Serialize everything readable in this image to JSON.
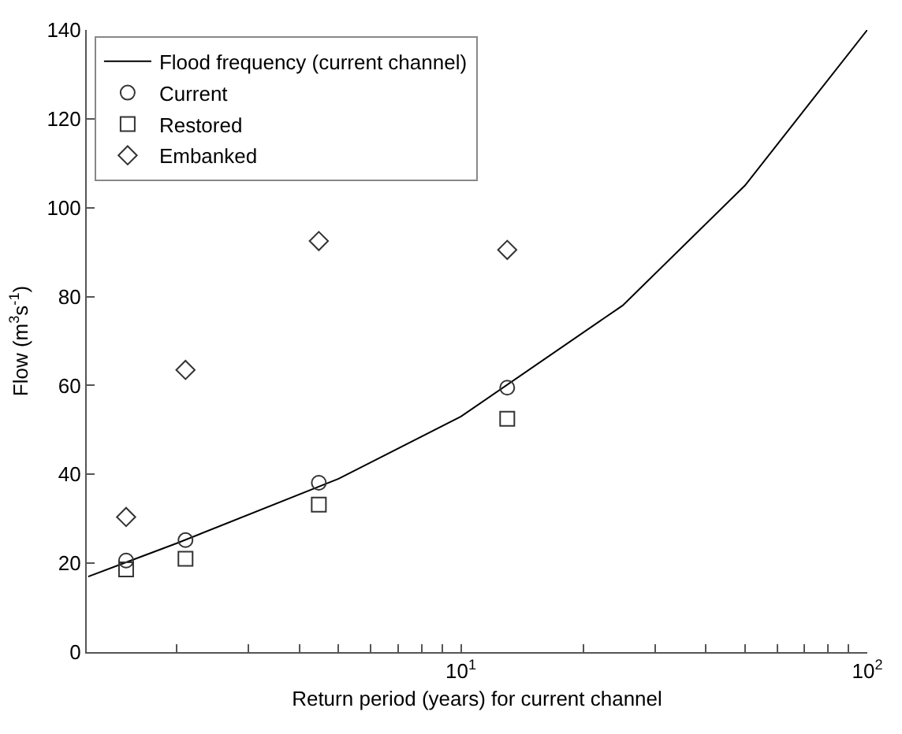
{
  "chart_data": {
    "type": "scatter",
    "xlabel": "Return period (years) for current channel",
    "ylabel": "Flow (m$^{3}$s$^{-1}$)",
    "log": "x",
    "xlim": [
      1.2,
      100
    ],
    "ylim": [
      0,
      140
    ],
    "xticks": [
      {
        "value": 2,
        "label": null
      },
      {
        "value": 3,
        "label": null
      },
      {
        "value": 4,
        "label": null
      },
      {
        "value": 5,
        "label": null
      },
      {
        "value": 6,
        "label": null
      },
      {
        "value": 7,
        "label": null
      },
      {
        "value": 8,
        "label": null
      },
      {
        "value": 9,
        "label": null
      },
      {
        "value": 10,
        "label": "10$^{1}$"
      },
      {
        "value": 20,
        "label": null
      },
      {
        "value": 30,
        "label": null
      },
      {
        "value": 40,
        "label": null
      },
      {
        "value": 50,
        "label": null
      },
      {
        "value": 60,
        "label": null
      },
      {
        "value": 70,
        "label": null
      },
      {
        "value": 80,
        "label": null
      },
      {
        "value": 90,
        "label": null
      },
      {
        "value": 100,
        "label": "10$^{2}$"
      }
    ],
    "yticks": [
      0,
      20,
      40,
      60,
      80,
      100,
      120,
      140
    ],
    "grid": false,
    "legend": "top left",
    "series": [
      {
        "name": "Flood frequency (current channel)",
        "type": "line",
        "marker": "none",
        "line_style": "solid",
        "color": "#000000",
        "x": [
          1.21,
          1.5,
          2,
          5,
          10,
          25,
          50,
          100
        ],
        "values": [
          17,
          20.2,
          24.5,
          39,
          53,
          78,
          105,
          140
        ]
      },
      {
        "name": "Current",
        "marker": "circle",
        "color": "#333333",
        "x": [
          1.5,
          2.1,
          4.47,
          13
        ],
        "values": [
          20.6,
          25.2,
          38.1,
          59.5
        ]
      },
      {
        "name": "Restored",
        "marker": "square",
        "color": "#333333",
        "x": [
          1.5,
          2.1,
          4.47,
          13
        ],
        "values": [
          18.6,
          21,
          33.2,
          52.5
        ]
      },
      {
        "name": "Embanked",
        "marker": "diamond",
        "color": "#333333",
        "x": [
          1.5,
          2.1,
          4.47,
          13
        ],
        "values": [
          30.4,
          63.5,
          92.5,
          90.5
        ]
      }
    ]
  }
}
